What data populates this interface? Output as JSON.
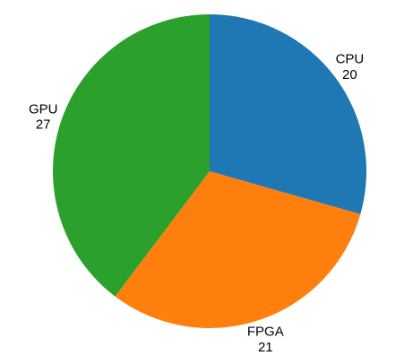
{
  "chart_data": {
    "type": "pie",
    "slices": [
      {
        "label": "CPU",
        "value": 20,
        "display_value": "20",
        "color": "#1f77b4"
      },
      {
        "label": "FPGA",
        "value": 21,
        "display_value": "21",
        "color": "#ff7f0e"
      },
      {
        "label": "GPU",
        "value": 27,
        "display_value": "27",
        "color": "#2ca02c"
      }
    ],
    "start_angle": "top",
    "direction": "clockwise",
    "legend": "none"
  }
}
